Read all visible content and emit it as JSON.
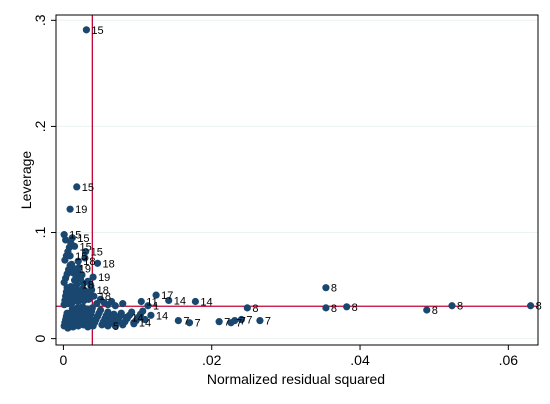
{
  "colors": {
    "point": "#1a476f",
    "reference_line": "#c10534",
    "grid": "#eaf2f3",
    "frame": "#000000",
    "background": "#ffffff"
  },
  "chart_data": {
    "type": "scatter",
    "title": "",
    "xlabel": "Normalized residual squared",
    "ylabel": "Leverage",
    "xlim": [
      -0.001,
      0.064
    ],
    "ylim": [
      -0.006,
      0.305
    ],
    "grid": true,
    "legend": "none",
    "x_ticks": [
      {
        "value": 0,
        "label": "0"
      },
      {
        "value": 0.02,
        "label": ".02"
      },
      {
        "value": 0.04,
        "label": ".04"
      },
      {
        "value": 0.06,
        "label": ".06"
      }
    ],
    "y_ticks": [
      {
        "value": 0,
        "label": "0"
      },
      {
        "value": 0.1,
        "label": ".1"
      },
      {
        "value": 0.2,
        "label": ".2"
      },
      {
        "value": 0.3,
        "label": ".3"
      }
    ],
    "reference_lines": {
      "mean_normalized_residual_squared": 0.0039,
      "mean_leverage": 0.0305
    },
    "labeled_points": [
      {
        "x": 0.0031,
        "y": 0.291,
        "label": "15"
      },
      {
        "x": 0.0018,
        "y": 0.143,
        "label": "15"
      },
      {
        "x": 0.0009,
        "y": 0.122,
        "label": "19"
      },
      {
        "x": 0.0001,
        "y": 0.098,
        "label": "15"
      },
      {
        "x": 0.0012,
        "y": 0.095,
        "label": "15"
      },
      {
        "x": 0.0015,
        "y": 0.087,
        "label": "15"
      },
      {
        "x": 0.003,
        "y": 0.082,
        "label": "15"
      },
      {
        "x": 0.0009,
        "y": 0.078,
        "label": "15"
      },
      {
        "x": 0.002,
        "y": 0.073,
        "label": "18"
      },
      {
        "x": 0.0046,
        "y": 0.071,
        "label": "18"
      },
      {
        "x": 0.0014,
        "y": 0.066,
        "label": "19"
      },
      {
        "x": 0.004,
        "y": 0.058,
        "label": "19"
      },
      {
        "x": 0.0018,
        "y": 0.051,
        "label": "18"
      },
      {
        "x": 0.0038,
        "y": 0.046,
        "label": "18"
      },
      {
        "x": 0.0041,
        "y": 0.04,
        "label": "18"
      },
      {
        "x": 0.0125,
        "y": 0.041,
        "label": "17"
      },
      {
        "x": 0.0142,
        "y": 0.036,
        "label": "14"
      },
      {
        "x": 0.0178,
        "y": 0.035,
        "label": "14"
      },
      {
        "x": 0.0105,
        "y": 0.035,
        "label": "11"
      },
      {
        "x": 0.0114,
        "y": 0.031,
        "label": "1"
      },
      {
        "x": 0.0118,
        "y": 0.022,
        "label": "14"
      },
      {
        "x": 0.0248,
        "y": 0.029,
        "label": "8"
      },
      {
        "x": 0.0354,
        "y": 0.048,
        "label": "8"
      },
      {
        "x": 0.0354,
        "y": 0.029,
        "label": "8"
      },
      {
        "x": 0.0382,
        "y": 0.03,
        "label": "8"
      },
      {
        "x": 0.049,
        "y": 0.027,
        "label": "8"
      },
      {
        "x": 0.0524,
        "y": 0.031,
        "label": "8"
      },
      {
        "x": 0.063,
        "y": 0.031,
        "label": "8"
      },
      {
        "x": 0.0155,
        "y": 0.017,
        "label": "7"
      },
      {
        "x": 0.017,
        "y": 0.015,
        "label": "7"
      },
      {
        "x": 0.021,
        "y": 0.016,
        "label": "7"
      },
      {
        "x": 0.0226,
        "y": 0.015,
        "label": "7"
      },
      {
        "x": 0.0231,
        "y": 0.017,
        "label": "7"
      },
      {
        "x": 0.024,
        "y": 0.018,
        "label": "7"
      },
      {
        "x": 0.0265,
        "y": 0.017,
        "label": "7"
      },
      {
        "x": 0.0085,
        "y": 0.02,
        "label": "14"
      },
      {
        "x": 0.006,
        "y": 0.012,
        "label": "5"
      },
      {
        "x": 0.0095,
        "y": 0.015,
        "label": "14"
      }
    ],
    "points": [
      [
        0.0001,
        0.012
      ],
      [
        0.0002,
        0.015
      ],
      [
        0.0003,
        0.018
      ],
      [
        0.0004,
        0.021
      ],
      [
        0.0005,
        0.024
      ],
      [
        0.0006,
        0.01
      ],
      [
        0.0007,
        0.013
      ],
      [
        0.0008,
        0.016
      ],
      [
        0.0009,
        0.019
      ],
      [
        0.001,
        0.022
      ],
      [
        0.0011,
        0.025
      ],
      [
        0.0012,
        0.028
      ],
      [
        0.0013,
        0.011
      ],
      [
        0.0014,
        0.014
      ],
      [
        0.0015,
        0.017
      ],
      [
        0.0016,
        0.02
      ],
      [
        0.0017,
        0.023
      ],
      [
        0.0018,
        0.026
      ],
      [
        0.0019,
        0.029
      ],
      [
        0.002,
        0.012
      ],
      [
        0.0021,
        0.015
      ],
      [
        0.0022,
        0.018
      ],
      [
        0.0023,
        0.021
      ],
      [
        0.0024,
        0.024
      ],
      [
        0.0025,
        0.027
      ],
      [
        0.0026,
        0.03
      ],
      [
        0.0027,
        0.013
      ],
      [
        0.0028,
        0.016
      ],
      [
        0.0029,
        0.019
      ],
      [
        0.003,
        0.022
      ],
      [
        0.0031,
        0.025
      ],
      [
        0.0032,
        0.028
      ],
      [
        0.0033,
        0.011
      ],
      [
        0.0034,
        0.014
      ],
      [
        0.0035,
        0.017
      ],
      [
        0.0036,
        0.02
      ],
      [
        0.0037,
        0.023
      ],
      [
        0.0038,
        0.026
      ],
      [
        0.0039,
        0.029
      ],
      [
        0.004,
        0.012
      ],
      [
        0.0042,
        0.015
      ],
      [
        0.0044,
        0.018
      ],
      [
        0.0046,
        0.021
      ],
      [
        0.0048,
        0.024
      ],
      [
        0.005,
        0.027
      ],
      [
        0.0052,
        0.013
      ],
      [
        0.0054,
        0.016
      ],
      [
        0.0056,
        0.019
      ],
      [
        0.0058,
        0.022
      ],
      [
        0.006,
        0.025
      ],
      [
        0.0062,
        0.014
      ],
      [
        0.0064,
        0.017
      ],
      [
        0.0066,
        0.02
      ],
      [
        0.0068,
        0.023
      ],
      [
        0.007,
        0.012
      ],
      [
        0.0072,
        0.015
      ],
      [
        0.0074,
        0.018
      ],
      [
        0.0076,
        0.021
      ],
      [
        0.0078,
        0.024
      ],
      [
        0.008,
        0.013
      ],
      [
        0.0083,
        0.016
      ],
      [
        0.0086,
        0.019
      ],
      [
        0.0089,
        0.022
      ],
      [
        0.0092,
        0.025
      ],
      [
        0.0095,
        0.014
      ],
      [
        0.0098,
        0.017
      ],
      [
        0.0101,
        0.02
      ],
      [
        0.0104,
        0.023
      ],
      [
        0.0107,
        0.026
      ],
      [
        0.011,
        0.018
      ],
      [
        0.0001,
        0.032
      ],
      [
        0.0002,
        0.036
      ],
      [
        0.0003,
        0.04
      ],
      [
        0.0004,
        0.044
      ],
      [
        0.0005,
        0.048
      ],
      [
        0.0006,
        0.033
      ],
      [
        0.0007,
        0.037
      ],
      [
        0.0008,
        0.041
      ],
      [
        0.0009,
        0.045
      ],
      [
        0.001,
        0.049
      ],
      [
        0.0012,
        0.034
      ],
      [
        0.0014,
        0.038
      ],
      [
        0.0016,
        0.042
      ],
      [
        0.0018,
        0.046
      ],
      [
        0.002,
        0.035
      ],
      [
        0.0022,
        0.039
      ],
      [
        0.0024,
        0.043
      ],
      [
        0.0026,
        0.047
      ],
      [
        0.0028,
        0.036
      ],
      [
        0.003,
        0.04
      ],
      [
        0.0032,
        0.044
      ],
      [
        0.0034,
        0.037
      ],
      [
        0.0036,
        0.041
      ],
      [
        0.0045,
        0.033
      ],
      [
        0.005,
        0.037
      ],
      [
        0.0055,
        0.034
      ],
      [
        0.006,
        0.032
      ],
      [
        0.0065,
        0.035
      ],
      [
        0.007,
        0.031
      ],
      [
        0.008,
        0.033
      ],
      [
        0.0001,
        0.053
      ],
      [
        0.0003,
        0.057
      ],
      [
        0.0005,
        0.061
      ],
      [
        0.0007,
        0.065
      ],
      [
        0.0009,
        0.069
      ],
      [
        0.0002,
        0.074
      ],
      [
        0.0004,
        0.078
      ],
      [
        0.0006,
        0.082
      ],
      [
        0.0008,
        0.086
      ],
      [
        0.001,
        0.09
      ],
      [
        0.0003,
        0.093
      ],
      [
        0.0011,
        0.07
      ],
      [
        0.0013,
        0.062
      ],
      [
        0.0015,
        0.055
      ],
      [
        0.0017,
        0.059
      ],
      [
        0.0019,
        0.063
      ],
      [
        0.0021,
        0.067
      ],
      [
        0.0023,
        0.056
      ],
      [
        0.0025,
        0.06
      ],
      [
        0.0027,
        0.052
      ],
      [
        0.0029,
        0.076
      ],
      [
        0.0033,
        0.054
      ],
      [
        0.0037,
        0.05
      ]
    ]
  }
}
